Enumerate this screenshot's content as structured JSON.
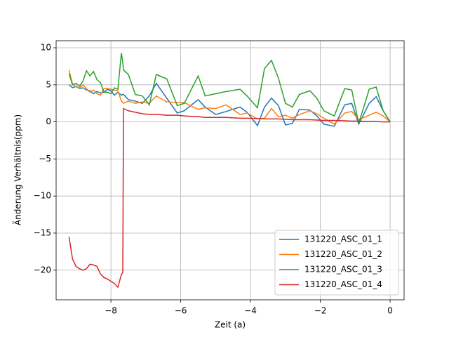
{
  "chart_data": {
    "type": "line",
    "xlabel": "Zeit (a)",
    "ylabel": "Änderung Verhältnis(ppm)",
    "x": [
      -9.2,
      -9.1,
      -9.0,
      -8.9,
      -8.8,
      -8.7,
      -8.6,
      -8.5,
      -8.4,
      -8.3,
      -8.2,
      -8.1,
      -8.0,
      -7.9,
      -7.8,
      -7.7,
      -7.66,
      -7.64,
      -7.5,
      -7.3,
      -7.1,
      -6.9,
      -6.7,
      -6.4,
      -6.1,
      -5.9,
      -5.5,
      -5.3,
      -5.0,
      -4.7,
      -4.3,
      -4.1,
      -3.8,
      -3.6,
      -3.4,
      -3.2,
      -3.0,
      -2.8,
      -2.6,
      -2.3,
      -2.1,
      -1.9,
      -1.6,
      -1.3,
      -1.1,
      -0.9,
      -0.6,
      -0.4,
      -0.2,
      0
    ],
    "series": [
      {
        "name": "131220_ASC_01_1",
        "color": "#1f77b4",
        "values": [
          5,
          4.6,
          4.8,
          4.5,
          4.6,
          4.3,
          4.2,
          3.8,
          4.1,
          3.9,
          4.0,
          4.4,
          4.2,
          3.6,
          4.0,
          3.6,
          3.7,
          3.7,
          3.0,
          2.8,
          2.5,
          3.5,
          5.2,
          3.2,
          1.2,
          1.5,
          3.0,
          2.0,
          1.0,
          1.4,
          2.0,
          1.3,
          -0.5,
          2.0,
          3.2,
          2.2,
          -0.4,
          -0.2,
          1.7,
          1.6,
          0.8,
          -0.3,
          -0.6,
          2.3,
          2.5,
          -0.3,
          2.5,
          3.4,
          1.5,
          0
        ]
      },
      {
        "name": "131220_ASC_01_2",
        "color": "#ff7f0e",
        "values": [
          7,
          5.1,
          4.7,
          4.6,
          5.0,
          4.5,
          4.0,
          4.3,
          3.8,
          3.6,
          4.5,
          4.5,
          4.4,
          4.3,
          4.2,
          2.8,
          2.6,
          2.5,
          2.8,
          2.5,
          2.7,
          2.5,
          3.5,
          2.7,
          2.6,
          2.6,
          1.7,
          1.9,
          1.8,
          2.3,
          1.0,
          1.2,
          0.4,
          0.5,
          1.8,
          0.7,
          0.9,
          0.5,
          1.0,
          1.5,
          1.1,
          0.5,
          -0.3,
          1.2,
          1.4,
          0.3,
          0.9,
          1.3,
          0.8,
          0
        ]
      },
      {
        "name": "131220_ASC_01_3",
        "color": "#2ca02c",
        "values": [
          6.5,
          5.0,
          5.2,
          4.8,
          5.5,
          6.9,
          6.2,
          6.8,
          5.7,
          5.3,
          4.0,
          4.0,
          3.8,
          4.6,
          4.4,
          9.3,
          8.0,
          7.0,
          6.4,
          3.7,
          3.5,
          2.3,
          6.4,
          5.8,
          2.2,
          2.5,
          6.2,
          3.5,
          3.8,
          4.1,
          4.4,
          3.5,
          1.9,
          7.2,
          8.3,
          5.9,
          2.5,
          2.0,
          3.7,
          4.2,
          3.2,
          1.5,
          0.8,
          4.5,
          4.3,
          -0.2,
          4.4,
          4.7,
          1.5,
          0
        ]
      },
      {
        "name": "131220_ASC_01_4",
        "color": "#d62728",
        "values": [
          -15.5,
          -18.5,
          -19.5,
          -19.8,
          -20.0,
          -19.8,
          -19.2,
          -19.3,
          -19.5,
          -20.5,
          -21.0,
          -21.2,
          -21.5,
          -21.8,
          -22.3,
          -20.6,
          -20.3,
          1.8,
          1.5,
          1.3,
          1.1,
          1.0,
          1.0,
          0.9,
          0.9,
          0.8,
          0.7,
          0.6,
          0.6,
          0.6,
          0.5,
          0.5,
          0.45,
          0.4,
          0.4,
          0.4,
          0.35,
          0.3,
          0.3,
          0.3,
          0.25,
          0.2,
          0.2,
          0.15,
          0.1,
          0.1,
          0.05,
          0.05,
          0,
          0
        ]
      }
    ],
    "xlim": [
      -9.57,
      0.4
    ],
    "ylim": [
      -24,
      10.95
    ],
    "xticks": [
      {
        "value": -8,
        "label": "−8"
      },
      {
        "value": -6,
        "label": "−6"
      },
      {
        "value": -4,
        "label": "−4"
      },
      {
        "value": -2,
        "label": "−2"
      },
      0
    ],
    "yticks": [
      10,
      5,
      0,
      {
        "value": -5,
        "label": "−5"
      },
      {
        "value": -10,
        "label": "−10"
      },
      {
        "value": -15,
        "label": "−15"
      },
      {
        "value": -20,
        "label": "−20"
      }
    ],
    "grid": true,
    "legend": "lower right"
  }
}
